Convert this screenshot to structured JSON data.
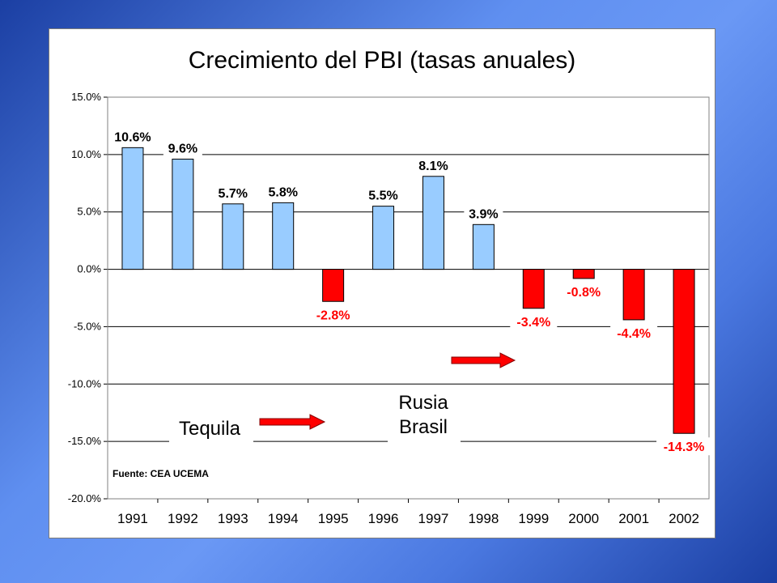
{
  "chart_data": {
    "type": "bar",
    "title": "Crecimiento del PBI (tasas anuales)",
    "categories": [
      "1991",
      "1992",
      "1993",
      "1994",
      "1995",
      "1996",
      "1997",
      "1998",
      "1999",
      "2000",
      "2001",
      "2002"
    ],
    "values": [
      10.6,
      9.6,
      5.7,
      5.8,
      -2.8,
      5.5,
      8.1,
      3.9,
      -3.4,
      -0.8,
      -4.4,
      -14.3
    ],
    "value_labels": [
      "10.6%",
      "9.6%",
      "5.7%",
      "5.8%",
      "-2.8%",
      "5.5%",
      "8.1%",
      "3.9%",
      "-3.4%",
      "-0.8%",
      "-4.4%",
      "-14.3%"
    ],
    "ylim": [
      -20,
      15
    ],
    "yticks": [
      15,
      10,
      5,
      0,
      -5,
      -10,
      -15,
      -20
    ],
    "ytick_labels": [
      "15.0%",
      "10.0%",
      "5.0%",
      "0.0%",
      "-5.0%",
      "-10.0%",
      "-15.0%",
      "-20.0%"
    ],
    "grid": true,
    "legend": "none",
    "colors": {
      "positive": "#99ccff",
      "negative": "#ff0000",
      "positive_label": "#000000",
      "negative_label": "#ff0000",
      "arrow": "#ff0000"
    },
    "annotations": {
      "crisis_1": "Tequila",
      "crisis_2_line1": "Rusia",
      "crisis_2_line2": "Brasil",
      "source": "Fuente: CEA UCEMA"
    }
  }
}
